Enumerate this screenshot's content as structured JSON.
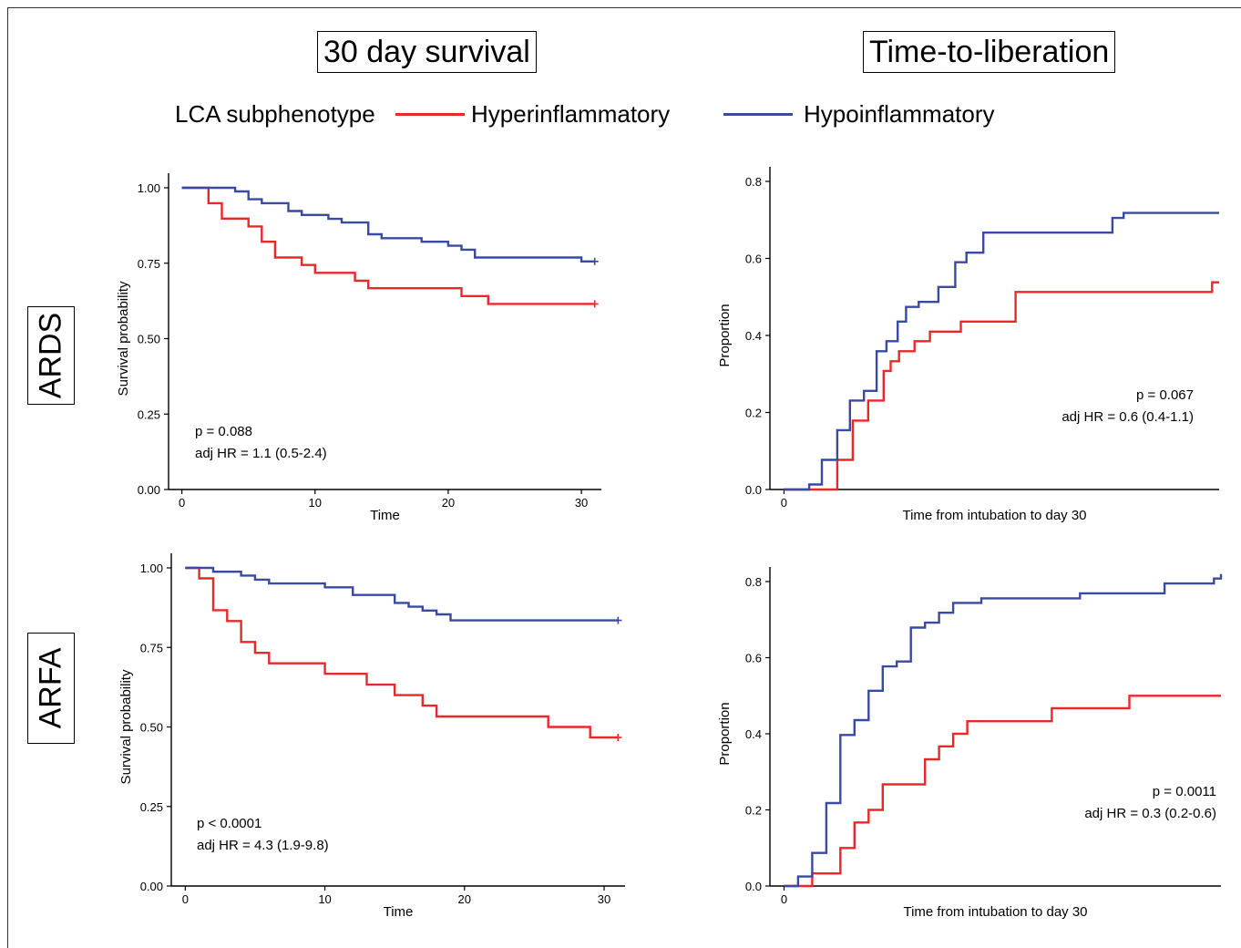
{
  "column_titles": [
    "30 day survival",
    "Time-to-liberation"
  ],
  "row_titles": [
    "ARDS",
    "ARFA"
  ],
  "legend": {
    "title": "LCA subphenotype",
    "items": [
      {
        "label": "Hyperinflammatory",
        "color": "#e8282b"
      },
      {
        "label": "Hypoinflammatory",
        "color": "#3a4aa0"
      }
    ]
  },
  "chart_data": [
    {
      "type": "line",
      "title": "",
      "xlabel": "Time",
      "ylabel": "Survival probability",
      "xlim": [
        -1,
        31.5
      ],
      "ylim": [
        0,
        1
      ],
      "xticks": [
        0,
        10,
        20,
        30
      ],
      "yticks": [
        0,
        0.25,
        0.5,
        0.75,
        1
      ],
      "ytick_labels": [
        "0.00",
        "0.25",
        "0.50",
        "0.75",
        "1.00"
      ],
      "annotations": [
        "p = 0.088",
        "adj HR = 1.1 (0.5-2.4)"
      ],
      "annotation_align": "left",
      "grid": false,
      "series": [
        {
          "name": "Hyperinflammatory",
          "color": "#e8282b",
          "censor_end": true,
          "x": [
            0,
            2,
            3,
            5,
            6,
            7,
            9,
            10,
            13,
            14,
            21,
            23,
            31
          ],
          "y": [
            1.0,
            0.949,
            0.898,
            0.872,
            0.821,
            0.769,
            0.744,
            0.718,
            0.692,
            0.667,
            0.641,
            0.615,
            0.615
          ]
        },
        {
          "name": "Hypoinflammatory",
          "color": "#3a4aa0",
          "censor_end": true,
          "x": [
            0,
            4,
            5,
            6,
            8,
            9,
            11,
            12,
            14,
            15,
            18,
            20,
            21,
            22,
            30,
            31
          ],
          "y": [
            1.0,
            0.988,
            0.962,
            0.949,
            0.923,
            0.91,
            0.897,
            0.885,
            0.846,
            0.833,
            0.821,
            0.808,
            0.795,
            0.769,
            0.756,
            0.756
          ]
        }
      ]
    },
    {
      "type": "line",
      "title": "",
      "xlabel": "Time from intubation to day 30",
      "ylabel": "Proportion",
      "xlim": [
        -1,
        31
      ],
      "ylim": [
        0,
        0.8
      ],
      "xticks": [
        0
      ],
      "yticks": [
        0,
        0.2,
        0.4,
        0.6,
        0.8
      ],
      "ytick_labels": [
        "0.0",
        "0.2",
        "0.4",
        "0.6",
        "0.8"
      ],
      "annotations": [
        "p = 0.067",
        "adj HR = 0.6 (0.4-1.1)"
      ],
      "annotation_align": "right",
      "grid": false,
      "series": [
        {
          "name": "Hyperinflammatory",
          "color": "#e8282b",
          "censor_end": false,
          "x": [
            0,
            3.8,
            4.9,
            6.0,
            7.1,
            7.6,
            8.2,
            9.3,
            10.4,
            10.9,
            11.5,
            12.6,
            16.5,
            30.5,
            31.0
          ],
          "y": [
            0.0,
            0.077,
            0.179,
            0.231,
            0.308,
            0.333,
            0.359,
            0.385,
            0.41,
            0.41,
            0.41,
            0.436,
            0.513,
            0.538,
            0.538
          ]
        },
        {
          "name": "Hypoinflammatory",
          "color": "#3a4aa0",
          "censor_end": false,
          "x": [
            0,
            1.8,
            2.7,
            3.8,
            4.7,
            5.7,
            6.6,
            7.3,
            8.1,
            8.7,
            9.6,
            11.0,
            12.2,
            13.0,
            14.2,
            23.4,
            24.2,
            31.0
          ],
          "y": [
            0.0,
            0.013,
            0.077,
            0.154,
            0.231,
            0.256,
            0.359,
            0.385,
            0.436,
            0.474,
            0.487,
            0.526,
            0.59,
            0.615,
            0.667,
            0.705,
            0.718,
            0.718
          ]
        }
      ]
    },
    {
      "type": "line",
      "title": "",
      "xlabel": "Time",
      "ylabel": "Survival probability",
      "xlim": [
        -1,
        31.5
      ],
      "ylim": [
        0,
        1
      ],
      "xticks": [
        0,
        10,
        20,
        30
      ],
      "yticks": [
        0,
        0.25,
        0.5,
        0.75,
        1
      ],
      "ytick_labels": [
        "0.00",
        "0.25",
        "0.50",
        "0.75",
        "1.00"
      ],
      "annotations": [
        "p < 0.0001",
        "adj HR = 4.3 (1.9-9.8)"
      ],
      "annotation_align": "left",
      "grid": false,
      "series": [
        {
          "name": "Hyperinflammatory",
          "color": "#e8282b",
          "censor_end": true,
          "x": [
            0,
            1,
            2,
            3,
            4,
            5,
            6,
            10,
            13,
            15,
            17,
            18,
            26,
            29,
            31
          ],
          "y": [
            1.0,
            0.967,
            0.867,
            0.833,
            0.767,
            0.733,
            0.7,
            0.667,
            0.633,
            0.6,
            0.567,
            0.533,
            0.5,
            0.467,
            0.467
          ]
        },
        {
          "name": "Hypoinflammatory",
          "color": "#3a4aa0",
          "censor_end": true,
          "x": [
            0,
            2,
            4,
            5,
            6,
            10,
            12,
            15,
            16,
            17,
            18,
            19,
            31
          ],
          "y": [
            1.0,
            0.988,
            0.976,
            0.963,
            0.951,
            0.939,
            0.915,
            0.89,
            0.878,
            0.866,
            0.854,
            0.835,
            0.835
          ]
        }
      ]
    },
    {
      "type": "line",
      "title": "",
      "xlabel": "Time from intubation to day 30",
      "ylabel": "Proportion",
      "xlim": [
        -1,
        31
      ],
      "ylim": [
        0,
        0.8
      ],
      "xticks": [
        0
      ],
      "yticks": [
        0,
        0.2,
        0.4,
        0.6,
        0.8
      ],
      "ytick_labels": [
        "0.0",
        "0.2",
        "0.4",
        "0.6",
        "0.8"
      ],
      "annotations": [
        "p = 0.0011",
        "adj HR = 0.3 (0.2-0.6)"
      ],
      "annotation_align": "right",
      "grid": false,
      "series": [
        {
          "name": "Hyperinflammatory",
          "color": "#e8282b",
          "censor_end": false,
          "x": [
            0,
            2.0,
            4.0,
            5.0,
            6.0,
            7.0,
            10.0,
            11.0,
            12.0,
            13.0,
            14.0,
            19.0,
            24.5,
            31.0
          ],
          "y": [
            0.0,
            0.033,
            0.1,
            0.167,
            0.2,
            0.267,
            0.333,
            0.367,
            0.4,
            0.433,
            0.433,
            0.467,
            0.5,
            0.5
          ]
        },
        {
          "name": "Hypoinflammatory",
          "color": "#3a4aa0",
          "censor_end": false,
          "x": [
            0,
            1.0,
            2.0,
            3.0,
            4.0,
            5.0,
            6.0,
            7.0,
            8.0,
            9.0,
            10.0,
            11.0,
            12.0,
            14.0,
            15.0,
            21.0,
            23.0,
            27.0,
            30.5,
            31.0
          ],
          "y": [
            0.0,
            0.025,
            0.087,
            0.218,
            0.397,
            0.436,
            0.513,
            0.577,
            0.59,
            0.679,
            0.692,
            0.718,
            0.744,
            0.756,
            0.756,
            0.769,
            0.769,
            0.795,
            0.808,
            0.82
          ]
        }
      ]
    }
  ]
}
